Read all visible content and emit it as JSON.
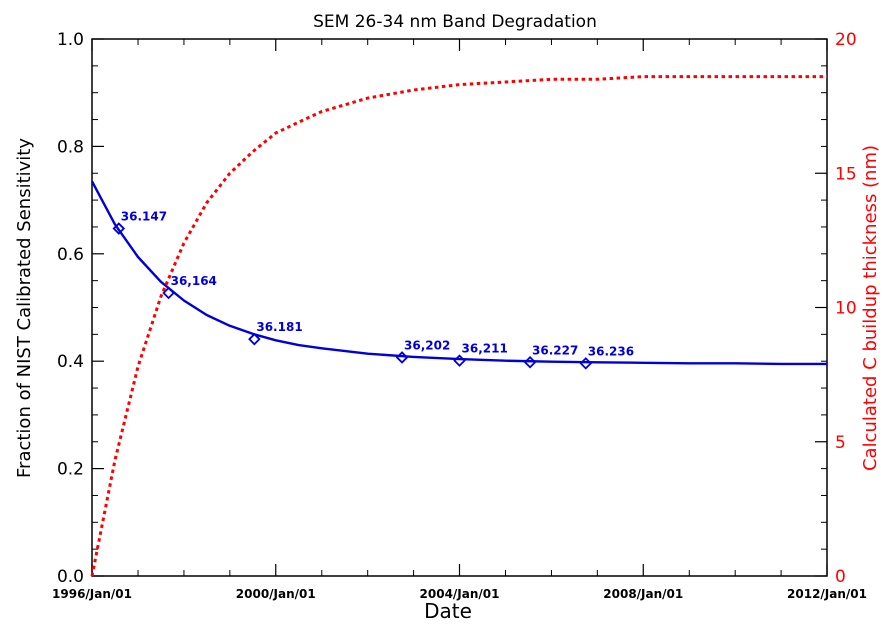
{
  "chart_data": {
    "type": "line",
    "title": "SEM 26-34 nm Band Degradation",
    "xlabel": "Date",
    "ylabel_left": "Fraction of NIST Calibrated Sensitivity",
    "ylabel_right": "Calculated C buildup thickness (nm)",
    "xlim": [
      "1996-01-01",
      "2012-01-01"
    ],
    "ylim_left": [
      0.0,
      1.0
    ],
    "ylim_right": [
      0,
      20
    ],
    "x_ticks": [
      "1996/Jan/01",
      "2000/Jan/01",
      "2004/Jan/01",
      "2008/Jan/01",
      "2012/Jan/01"
    ],
    "y_ticks_left": [
      "0.0",
      "0.2",
      "0.4",
      "0.6",
      "0.8",
      "1.0"
    ],
    "y_ticks_right": [
      "0",
      "5",
      "10",
      "15",
      "20"
    ],
    "grid": false,
    "colors": {
      "sensitivity": "#0000dd",
      "thickness": "#ff0000",
      "axes": "#000000"
    },
    "series": [
      {
        "axis": "left",
        "style": "solid",
        "x": [
          "1996-01-01",
          "1996-07-01",
          "1997-01-01",
          "1997-07-01",
          "1998-01-01",
          "1998-07-01",
          "1999-01-01",
          "1999-07-01",
          "2000-01-01",
          "2000-07-01",
          "2001-01-01",
          "2002-01-01",
          "2003-01-01",
          "2004-01-01",
          "2005-01-01",
          "2006-01-01",
          "2007-01-01",
          "2008-01-01",
          "2009-01-01",
          "2010-01-01",
          "2011-01-01",
          "2012-01-01"
        ],
        "y": [
          0.735,
          0.655,
          0.594,
          0.548,
          0.513,
          0.486,
          0.466,
          0.451,
          0.439,
          0.43,
          0.424,
          0.414,
          0.408,
          0.404,
          0.401,
          0.399,
          0.398,
          0.397,
          0.396,
          0.396,
          0.395,
          0.395
        ]
      },
      {
        "axis": "right",
        "style": "dotted",
        "x": [
          "1996-01-01",
          "1996-07-01",
          "1997-01-01",
          "1997-07-01",
          "1998-01-01",
          "1998-07-01",
          "1999-01-01",
          "1999-07-01",
          "2000-01-01",
          "2000-07-01",
          "2001-01-01",
          "2002-01-01",
          "2003-01-01",
          "2004-01-01",
          "2005-01-01",
          "2006-01-01",
          "2007-01-01",
          "2008-01-01",
          "2009-01-01",
          "2010-01-01",
          "2011-01-01",
          "2012-01-01"
        ],
        "y": [
          0.0,
          4.3,
          7.8,
          10.4,
          12.4,
          13.9,
          15.0,
          15.8,
          16.5,
          16.9,
          17.3,
          17.8,
          18.1,
          18.3,
          18.4,
          18.5,
          18.5,
          18.6,
          18.6,
          18.6,
          18.6,
          18.6
        ]
      }
    ],
    "points": [
      {
        "label": "36.147",
        "x": "1996-08-01",
        "y": 0.647
      },
      {
        "label": "36,164",
        "x": "1997-09-01",
        "y": 0.527
      },
      {
        "label": "36.181",
        "x": "1999-07-15",
        "y": 0.441
      },
      {
        "label": "36,202",
        "x": "2002-10-01",
        "y": 0.407
      },
      {
        "label": "36,211",
        "x": "2004-01-01",
        "y": 0.401
      },
      {
        "label": "36.227",
        "x": "2005-07-15",
        "y": 0.398
      },
      {
        "label": "36.236",
        "x": "2006-10-01",
        "y": 0.396
      }
    ]
  }
}
